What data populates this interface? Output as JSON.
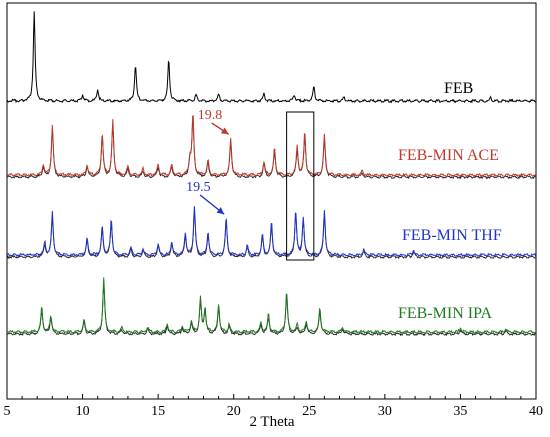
{
  "chart_data": {
    "type": "line",
    "xlabel": "2 Theta",
    "ylabel": "",
    "xlim": [
      5,
      40
    ],
    "x_ticks": [
      5,
      10,
      15,
      20,
      25,
      30,
      35,
      40
    ],
    "grid": false,
    "series": [
      {
        "name": "FEB",
        "color": "#000000",
        "baseline": 0.0,
        "peaks": [
          [
            6.8,
            8.5
          ],
          [
            10.0,
            0.6
          ],
          [
            11.0,
            1.1
          ],
          [
            13.5,
            3.5
          ],
          [
            15.7,
            3.9
          ],
          [
            17.5,
            0.6
          ],
          [
            19.0,
            0.6
          ],
          [
            22.0,
            0.7
          ],
          [
            24.0,
            0.6
          ],
          [
            25.3,
            1.3
          ],
          [
            27.3,
            0.4
          ],
          [
            37.0,
            0.3
          ]
        ]
      },
      {
        "name": "FEB-MIN ACE",
        "color": "#c0392b",
        "baseline": 0.0,
        "peaks": [
          [
            7.4,
            1.0
          ],
          [
            8.0,
            4.8
          ],
          [
            10.3,
            1.0
          ],
          [
            11.3,
            4.0
          ],
          [
            12.0,
            5.2
          ],
          [
            13.0,
            0.8
          ],
          [
            14.0,
            0.6
          ],
          [
            15.0,
            1.0
          ],
          [
            15.9,
            1.0
          ],
          [
            17.1,
            1.6
          ],
          [
            17.3,
            5.8
          ],
          [
            18.3,
            1.4
          ],
          [
            19.8,
            3.5
          ],
          [
            22.0,
            1.3
          ],
          [
            22.7,
            2.6
          ],
          [
            24.2,
            2.7
          ],
          [
            24.7,
            4.1
          ],
          [
            26.0,
            3.8
          ],
          [
            28.5,
            0.4
          ]
        ]
      },
      {
        "name": "FEB-MIN THF",
        "color": "#2233cc",
        "baseline": 0.0,
        "peaks": [
          [
            7.5,
            1.2
          ],
          [
            8.0,
            4.1
          ],
          [
            10.3,
            1.6
          ],
          [
            11.3,
            2.7
          ],
          [
            11.9,
            3.4
          ],
          [
            13.2,
            0.7
          ],
          [
            14.0,
            0.6
          ],
          [
            15.0,
            1.1
          ],
          [
            15.9,
            1.3
          ],
          [
            16.8,
            2.1
          ],
          [
            17.4,
            4.7
          ],
          [
            18.3,
            2.2
          ],
          [
            19.5,
            3.5
          ],
          [
            20.9,
            0.9
          ],
          [
            21.9,
            1.9
          ],
          [
            22.5,
            3.1
          ],
          [
            24.1,
            4.3
          ],
          [
            24.6,
            3.6
          ],
          [
            26.0,
            4.3
          ],
          [
            28.6,
            0.5
          ],
          [
            31.9,
            0.5
          ]
        ]
      },
      {
        "name": "FEB-MIN IPA",
        "color": "#1e7b1e",
        "baseline": 0.0,
        "peaks": [
          [
            7.3,
            2.4
          ],
          [
            7.9,
            1.6
          ],
          [
            10.1,
            1.2
          ],
          [
            11.4,
            5.2
          ],
          [
            12.6,
            0.4
          ],
          [
            14.3,
            0.5
          ],
          [
            15.6,
            0.8
          ],
          [
            16.6,
            0.6
          ],
          [
            17.2,
            1.1
          ],
          [
            17.8,
            3.2
          ],
          [
            18.1,
            2.3
          ],
          [
            19.0,
            2.7
          ],
          [
            19.7,
            0.7
          ],
          [
            21.8,
            0.9
          ],
          [
            22.3,
            1.7
          ],
          [
            23.5,
            3.9
          ],
          [
            24.2,
            0.7
          ],
          [
            24.8,
            1.0
          ],
          [
            25.7,
            2.3
          ],
          [
            27.2,
            0.5
          ],
          [
            35.0,
            0.4
          ],
          [
            38.0,
            0.3
          ]
        ]
      }
    ],
    "annotations": [
      {
        "text": "19.8",
        "x": 19.8,
        "series": "FEB-MIN ACE",
        "color": "#c0392b"
      },
      {
        "text": "19.5",
        "x": 19.5,
        "series": "FEB-MIN THF",
        "color": "#2233cc"
      }
    ],
    "highlight_box": {
      "x_range": [
        23.5,
        25.3
      ]
    }
  }
}
